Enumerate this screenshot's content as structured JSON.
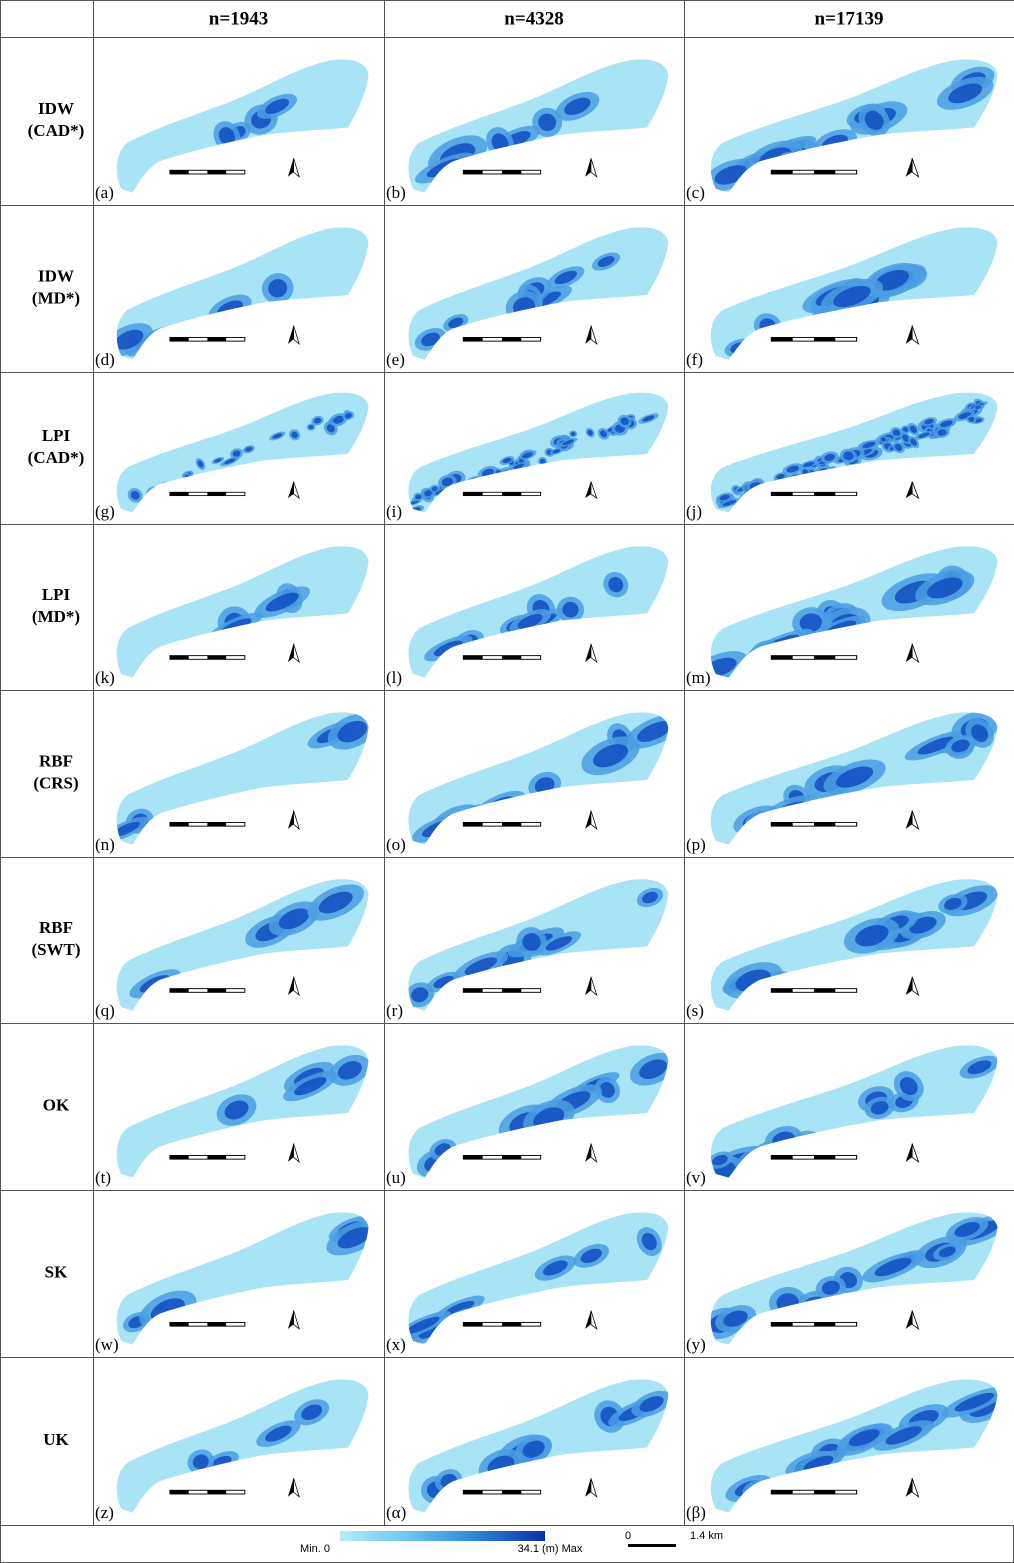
{
  "header": {
    "columns": [
      "n=1943",
      "n=4328",
      "n=17139"
    ]
  },
  "rows": [
    {
      "label": [
        "IDW",
        "(CAD*)"
      ],
      "panels": [
        "(a)",
        "(b)",
        "(c)"
      ]
    },
    {
      "label": [
        "IDW",
        "(MD*)"
      ],
      "panels": [
        "(d)",
        "(e)",
        "(f)"
      ]
    },
    {
      "label": [
        "LPI",
        "(CAD*)"
      ],
      "panels": [
        "(g)",
        "(i)",
        "(j)"
      ]
    },
    {
      "label": [
        "LPI",
        "(MD*)"
      ],
      "panels": [
        "(k)",
        "(l)",
        "(m)"
      ]
    },
    {
      "label": [
        "RBF",
        "(CRS)"
      ],
      "panels": [
        "(n)",
        "(o)",
        "(p)"
      ]
    },
    {
      "label": [
        "RBF",
        "(SWT)"
      ],
      "panels": [
        "(q)",
        "(r)",
        "(s)"
      ]
    },
    {
      "label": [
        "OK"
      ],
      "panels": [
        "(t)",
        "(u)",
        "(v)"
      ]
    },
    {
      "label": [
        "SK"
      ],
      "panels": [
        "(w)",
        "(x)",
        "(y)"
      ]
    },
    {
      "label": [
        "UK"
      ],
      "panels": [
        "(z)",
        "(α)",
        "(β)"
      ]
    }
  ],
  "legend": {
    "min": "Min. 0",
    "max": "34.1 (m) Max",
    "scale_start": "0",
    "scale_end": "1.4 km"
  }
}
